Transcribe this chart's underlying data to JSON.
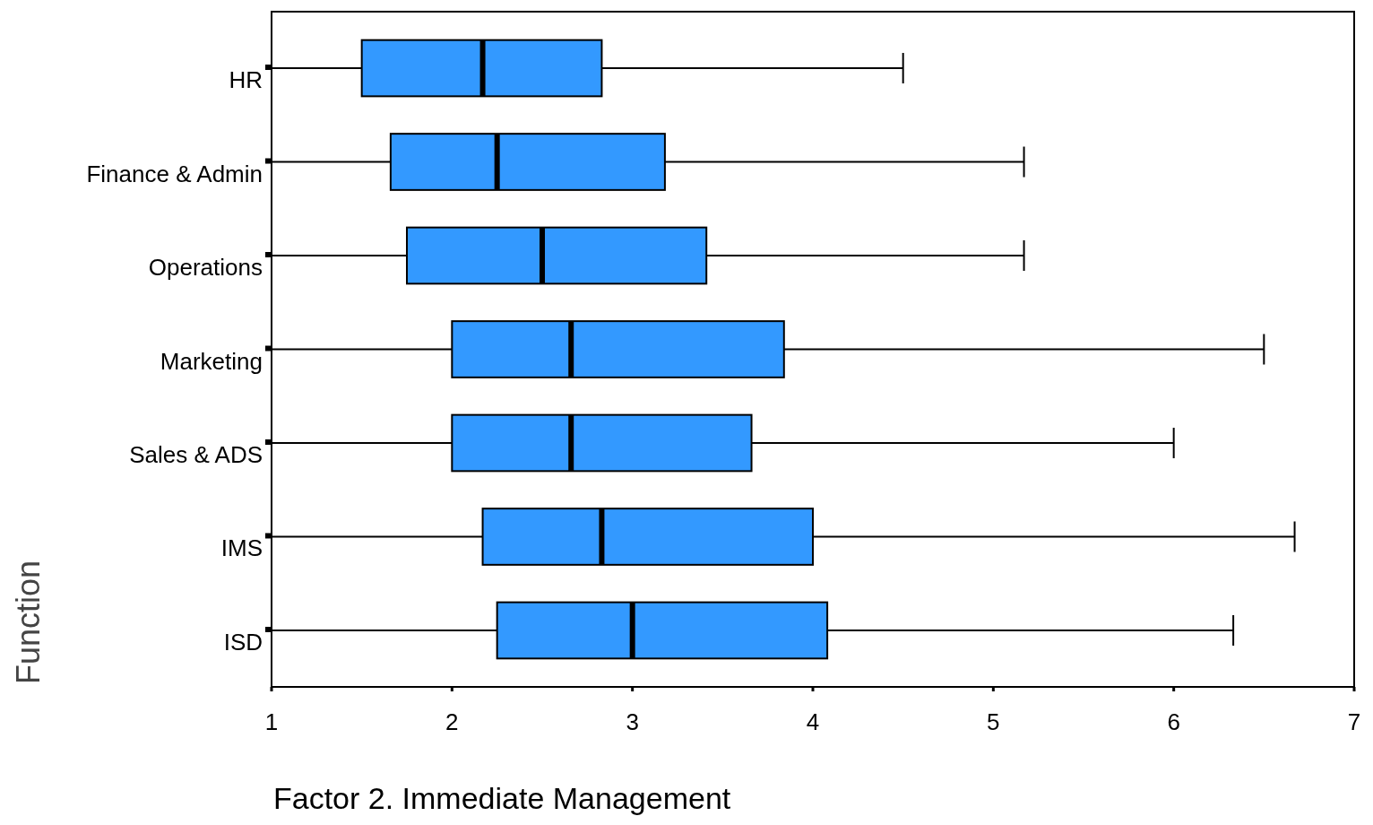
{
  "chart_data": {
    "type": "box",
    "orientation": "horizontal",
    "xlabel": "Factor 2. Immediate Management",
    "ylabel": "Function",
    "categories": [
      "HR",
      "Finance & Admin",
      "Operations",
      "Marketing",
      "Sales & ADS",
      "IMS",
      "ISD"
    ],
    "color": "#3399ff",
    "boxes": [
      {
        "low": 1,
        "q1": 1.5,
        "median": 2.17,
        "q3": 2.83,
        "high": 4.5
      },
      {
        "low": 1,
        "q1": 1.66,
        "median": 2.25,
        "q3": 3.18,
        "high": 5.17
      },
      {
        "low": 1,
        "q1": 1.75,
        "median": 2.5,
        "q3": 3.41,
        "high": 5.17
      },
      {
        "low": 1,
        "q1": 2.0,
        "median": 2.66,
        "q3": 3.84,
        "high": 6.5
      },
      {
        "low": 1,
        "q1": 2.0,
        "median": 2.66,
        "q3": 3.66,
        "high": 6.0
      },
      {
        "low": 1,
        "q1": 2.17,
        "median": 2.83,
        "q3": 4.0,
        "high": 6.67
      },
      {
        "low": 1,
        "q1": 2.25,
        "median": 3.0,
        "q3": 4.08,
        "high": 6.33
      }
    ],
    "xlim": [
      1,
      7
    ],
    "xticks": [
      1,
      2,
      3,
      4,
      5,
      6,
      7
    ],
    "grid": false
  }
}
